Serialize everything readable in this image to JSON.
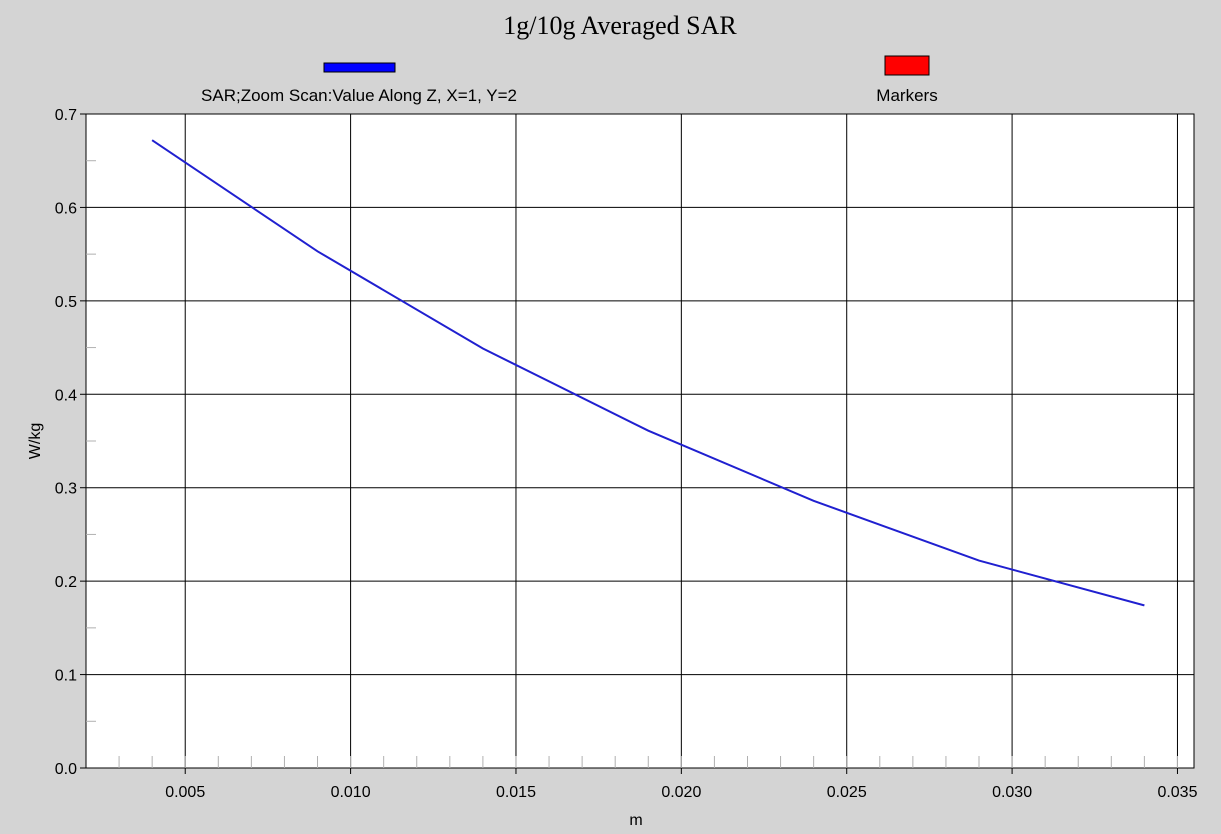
{
  "chart_data": {
    "type": "line",
    "title": "1g/10g Averaged SAR",
    "xlabel": "m",
    "ylabel": "W/kg",
    "xlim": [
      0.002,
      0.0355
    ],
    "ylim": [
      0.0,
      0.7
    ],
    "x_ticks": [
      "0.005",
      "0.010",
      "0.015",
      "0.020",
      "0.025",
      "0.030",
      "0.035"
    ],
    "y_ticks": [
      "0.0",
      "0.1",
      "0.2",
      "0.3",
      "0.4",
      "0.5",
      "0.6",
      "0.7"
    ],
    "grid": true,
    "legend": [
      {
        "label": "SAR;Zoom Scan:Value Along Z, X=1, Y=2",
        "color": "#0000ff"
      },
      {
        "label": "Markers",
        "color": "#ff0000"
      }
    ],
    "series": [
      {
        "name": "SAR;Zoom Scan:Value Along Z, X=1, Y=2",
        "color": "#2020d0",
        "x": [
          0.004,
          0.009,
          0.014,
          0.019,
          0.024,
          0.029,
          0.034
        ],
        "y": [
          0.672,
          0.553,
          0.449,
          0.361,
          0.286,
          0.222,
          0.174
        ]
      }
    ]
  }
}
